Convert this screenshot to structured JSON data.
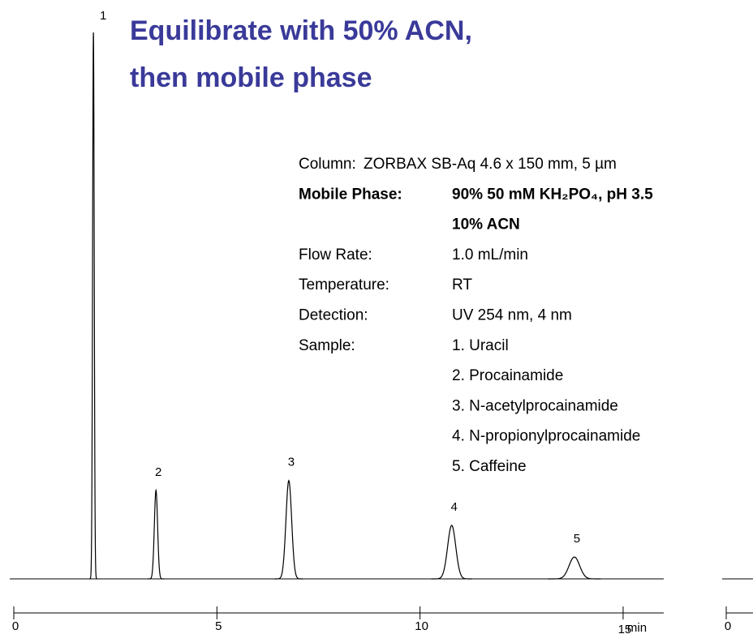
{
  "chart_data": [
    {
      "type": "chromatogram",
      "title": [
        "Equilibrate with 50% ACN,",
        "then mobile phase"
      ],
      "x_label": "min",
      "xlim": [
        0,
        16
      ],
      "xticks": [
        0,
        5,
        10,
        15
      ],
      "ylim": [
        0,
        100
      ],
      "color": "#000000",
      "peaks": [
        {
          "label": "1",
          "time": 1.96,
          "height": 100,
          "width": 0.02
        },
        {
          "label": "2",
          "time": 3.5,
          "height": 16.2,
          "width": 0.04
        },
        {
          "label": "3",
          "time": 6.77,
          "height": 18,
          "width": 0.07
        },
        {
          "label": "4",
          "time": 10.78,
          "height": 9.8,
          "width": 0.1
        },
        {
          "label": "5",
          "time": 13.8,
          "height": 4,
          "width": 0.13
        }
      ],
      "conditions": [
        {
          "label": "Column:",
          "value": [
            "ZORBAX SB-Aq  4.6 x 150 mm, 5 µm"
          ],
          "inline": true
        },
        {
          "label": "Mobile Phase:",
          "value": [
            "90% 50 mM KH₂PO₄,  pH 3.5",
            "10% ACN"
          ],
          "bold": true
        },
        {
          "label": "Flow  Rate:",
          "value": [
            "1.0 mL/min"
          ]
        },
        {
          "label": "Temperature:",
          "value": [
            "RT"
          ]
        },
        {
          "label": "Detection:",
          "value": [
            "UV 254 nm, 4 nm"
          ]
        },
        {
          "label": "Sample:",
          "value": [
            "1. Uracil",
            "2. Procainamide",
            "3. N-acetylprocainamide",
            "4. N-propionylprocainamide",
            "5. Caffeine"
          ]
        }
      ]
    },
    {
      "type": "chromatogram",
      "xlim": [
        0,
        0.66
      ],
      "xticks": [
        0
      ],
      "color": "#000000"
    }
  ]
}
